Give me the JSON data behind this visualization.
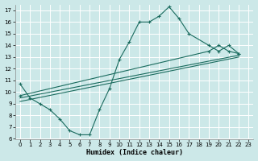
{
  "title": "",
  "xlabel": "Humidex (Indice chaleur)",
  "bg_color": "#cce8e8",
  "grid_color": "#b8d8d8",
  "line_color": "#1a6b5e",
  "xlim": [
    -0.5,
    23.5
  ],
  "ylim": [
    6,
    17.5
  ],
  "xticks": [
    0,
    1,
    2,
    3,
    4,
    5,
    6,
    7,
    8,
    9,
    10,
    11,
    12,
    13,
    14,
    15,
    16,
    17,
    18,
    19,
    20,
    21,
    22,
    23
  ],
  "yticks": [
    6,
    7,
    8,
    9,
    10,
    11,
    12,
    13,
    14,
    15,
    16,
    17
  ],
  "curve1_x": [
    0,
    1,
    2,
    3,
    4,
    5,
    6,
    7,
    8,
    9,
    10,
    11,
    12,
    13,
    14,
    15,
    16,
    17,
    19,
    20,
    21,
    22
  ],
  "curve1_y": [
    10.7,
    9.5,
    9.0,
    8.5,
    7.7,
    6.7,
    6.35,
    6.35,
    8.5,
    10.3,
    12.8,
    14.3,
    16.0,
    16.0,
    16.5,
    17.3,
    16.3,
    15.0,
    14.0,
    13.5,
    14.0,
    13.3
  ],
  "line2_x": [
    0,
    19,
    20,
    21,
    22
  ],
  "line2_y": [
    9.7,
    13.5,
    14.0,
    13.5,
    13.3
  ],
  "line3_x": [
    0,
    22
  ],
  "line3_y": [
    9.2,
    13.0
  ],
  "line4_x": [
    0,
    22
  ],
  "line4_y": [
    9.5,
    13.15
  ]
}
